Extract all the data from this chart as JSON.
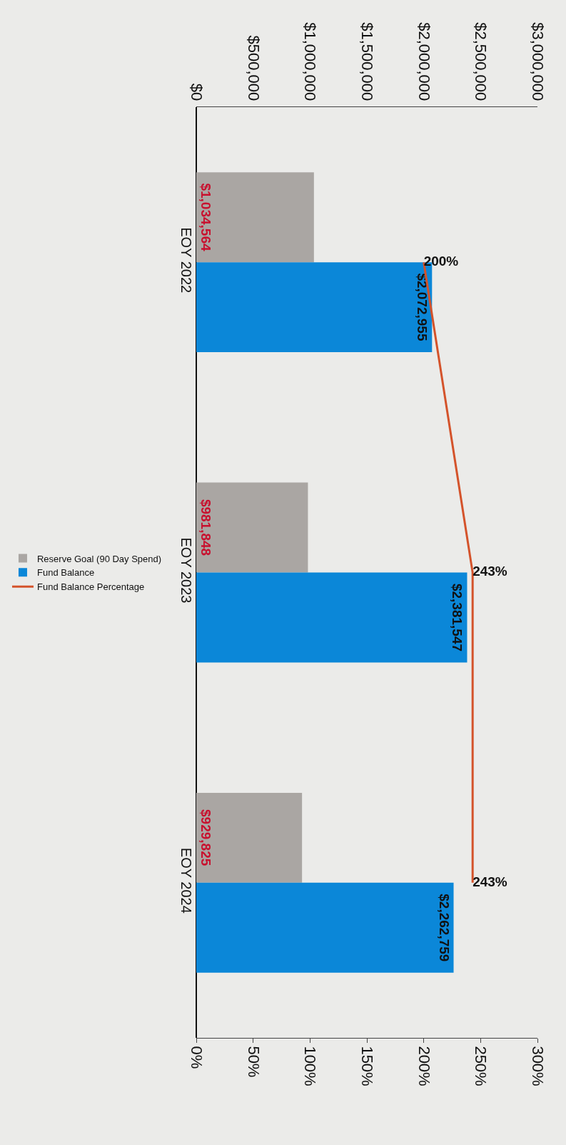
{
  "chart_data": {
    "type": "bar",
    "orientation": "horizontal",
    "categories": [
      "EOY 2022",
      "EOY 2023",
      "EOY 2024"
    ],
    "series": [
      {
        "name": "Reserve Goal (90 Day Spend)",
        "color": "#aaa6a3",
        "values": [
          1034564,
          981848,
          929825
        ],
        "value_labels": [
          "$1,034,564",
          "$981,848",
          "$929,825"
        ]
      },
      {
        "name": "Fund Balance",
        "color": "#0b87d8",
        "values": [
          2072955,
          2381547,
          2262759
        ],
        "value_labels": [
          "$2,072,955",
          "$2,381,547",
          "$2,262,759"
        ]
      },
      {
        "name": "Fund Balance Percentage",
        "type": "line",
        "axis": "x2",
        "color": "#d4532b",
        "values": [
          200,
          243,
          243
        ],
        "value_labels": [
          "200%",
          "243%",
          "243%"
        ]
      }
    ],
    "xlim": [
      0,
      3000000
    ],
    "xticks": [
      {
        "value": 0,
        "label": "$0"
      },
      {
        "value": 500000,
        "label": "$500,000"
      },
      {
        "value": 1000000,
        "label": "$1,000,000"
      },
      {
        "value": 1500000,
        "label": "$1,500,000"
      },
      {
        "value": 2000000,
        "label": "$2,000,000"
      },
      {
        "value": 2500000,
        "label": "$2,500,000"
      },
      {
        "value": 3000000,
        "label": "$3,000,000"
      }
    ],
    "x2lim": [
      0,
      300
    ],
    "x2ticks": [
      {
        "value": 0,
        "label": "0%"
      },
      {
        "value": 50,
        "label": "50%"
      },
      {
        "value": 100,
        "label": "100%"
      },
      {
        "value": 150,
        "label": "150%"
      },
      {
        "value": 200,
        "label": "200%"
      },
      {
        "value": 250,
        "label": "250%"
      },
      {
        "value": 300,
        "label": "300%"
      }
    ],
    "legend": "left"
  }
}
